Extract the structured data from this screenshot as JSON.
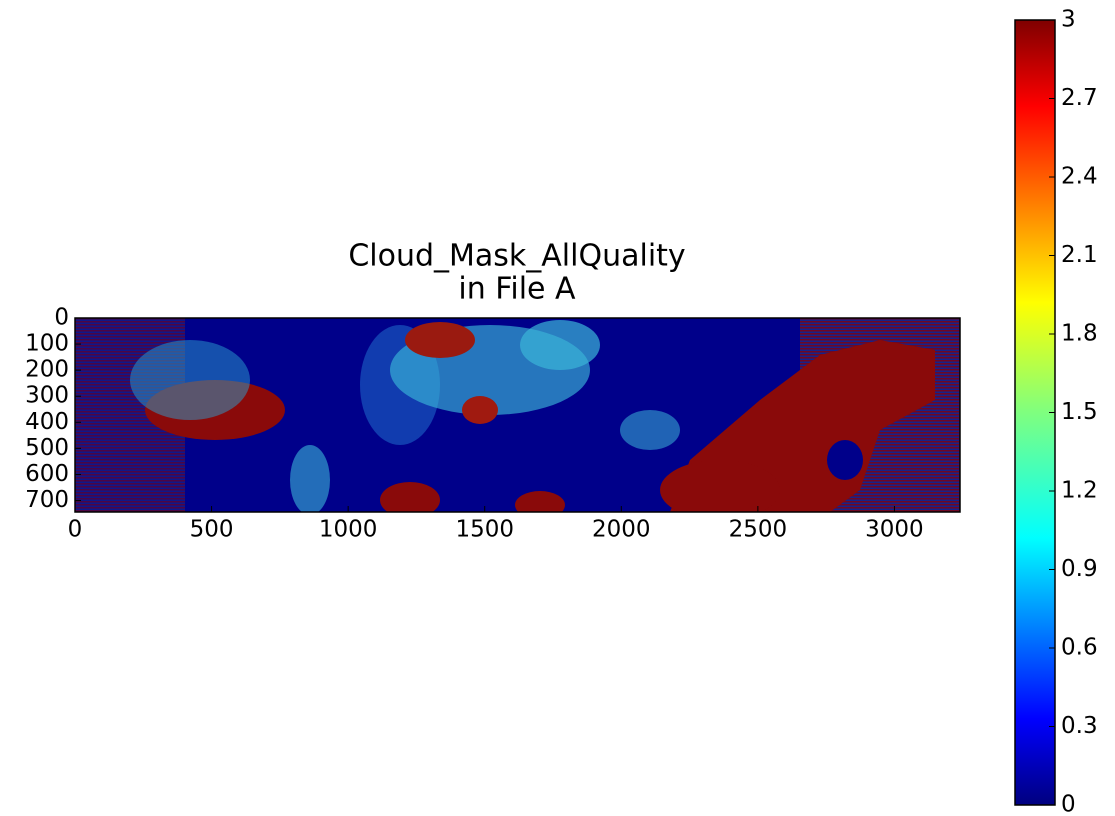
{
  "chart_data": {
    "type": "heatmap",
    "title": "Cloud_Mask_AllQuality",
    "subtitle": "in File A",
    "xlim": [
      0,
      3240
    ],
    "xticks": [
      0,
      500,
      1000,
      1500,
      2000,
      2500,
      3000
    ],
    "ylim": [
      744,
      0
    ],
    "yticks": [
      0,
      100,
      200,
      300,
      400,
      500,
      600,
      700
    ],
    "colormap": "jet",
    "clim": [
      0,
      3
    ],
    "colorbar_ticks": [
      0,
      0.3,
      0.6,
      0.9,
      1.2,
      1.5,
      1.8,
      2.1,
      2.4,
      2.7,
      3
    ]
  }
}
